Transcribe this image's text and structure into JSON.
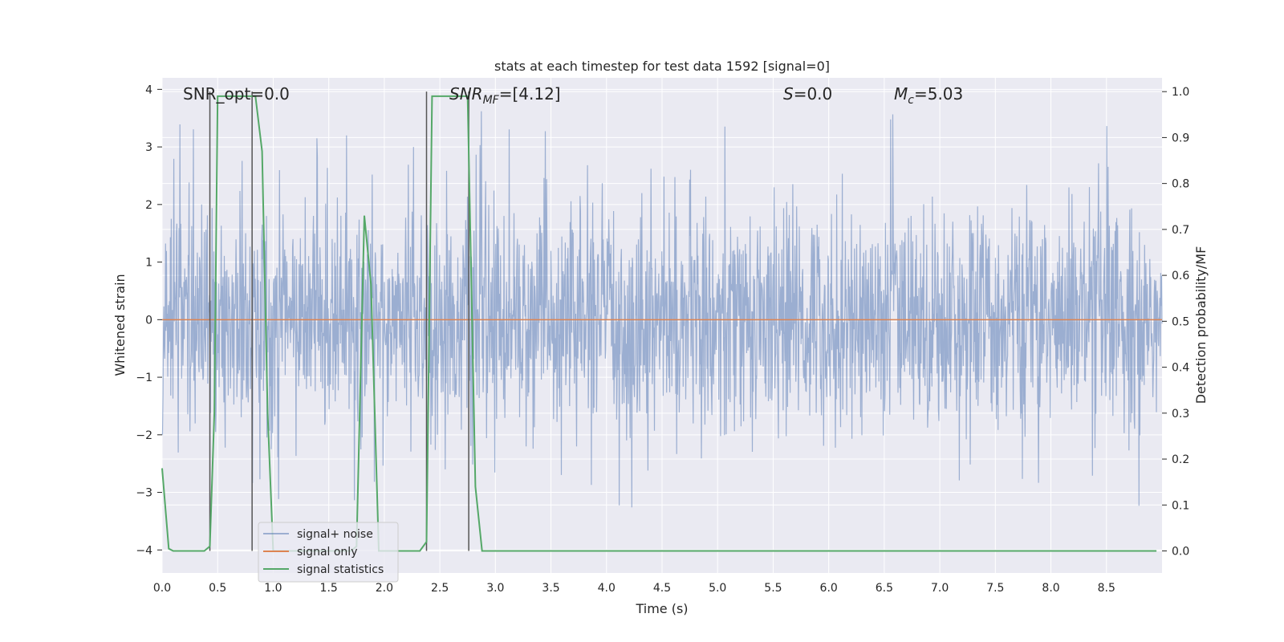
{
  "chart_data": {
    "type": "line",
    "title": "stats at each timestep for test data 1592 [signal=0]",
    "xlabel": "Time (s)",
    "ylabel": "Whitened strain",
    "ylabel_right": "Detection probability/MF",
    "xlim": [
      0.0,
      9.0
    ],
    "ylim": [
      -4.4,
      4.2
    ],
    "ylim_right": [
      -0.048,
      1.03
    ],
    "x_ticks": [
      "0.0",
      "0.5",
      "1.0",
      "1.5",
      "2.0",
      "2.5",
      "3.0",
      "3.5",
      "4.0",
      "4.5",
      "5.0",
      "5.5",
      "6.0",
      "6.5",
      "7.0",
      "7.5",
      "8.0",
      "8.5"
    ],
    "y_ticks": [
      "4",
      "3",
      "2",
      "1",
      "0",
      "−1",
      "−2",
      "−3",
      "−4"
    ],
    "y_ticks_right": [
      "1.0",
      "0.9",
      "0.8",
      "0.7",
      "0.6",
      "0.5",
      "0.4",
      "0.3",
      "0.2",
      "0.1",
      "0.0"
    ],
    "grid": true,
    "legend_position": "lower-left",
    "annotations": {
      "snr_opt": "SNR_opt=0.0",
      "snr_mf_main": "SNR",
      "snr_mf_sub": "MF",
      "snr_mf_rest": "=[4.12]",
      "s_main": "S",
      "s_rest": "=0.0",
      "mc_main": "M",
      "mc_sub": "c",
      "mc_rest": "=5.03"
    },
    "series": [
      {
        "name": "signal+ noise",
        "color": "#4c72b0",
        "style": "dense noise, amplitude mostly within ±2.5, spikes up to ±3.8",
        "typical_range": [
          -2.5,
          2.5
        ]
      },
      {
        "name": "signal only",
        "color": "#dd8452",
        "x": [
          0.0,
          9.0
        ],
        "y": [
          0.0,
          0.0
        ]
      },
      {
        "name": "signal statistics",
        "color": "#55a868",
        "axis": "right",
        "x": [
          0.0,
          0.06,
          0.1,
          0.2,
          0.3,
          0.38,
          0.43,
          0.47,
          0.5,
          0.6,
          0.7,
          0.8,
          0.84,
          0.9,
          0.95,
          1.0,
          1.1,
          1.2,
          1.3,
          1.4,
          1.5,
          1.6,
          1.7,
          1.75,
          1.82,
          1.88,
          1.95,
          2.0,
          2.1,
          2.2,
          2.32,
          2.38,
          2.43,
          2.5,
          2.6,
          2.7,
          2.75,
          2.82,
          2.88,
          3.0,
          4.0,
          5.0,
          6.0,
          7.0,
          8.0,
          8.95
        ],
        "y": [
          0.18,
          0.005,
          0.0,
          0.0,
          0.0,
          0.0,
          0.01,
          0.3,
          0.99,
          0.99,
          0.99,
          0.99,
          0.99,
          0.87,
          0.3,
          0.0,
          0.0,
          0.0,
          0.0,
          0.0,
          0.0,
          0.0,
          0.0,
          0.01,
          0.73,
          0.58,
          0.0,
          0.0,
          0.0,
          0.0,
          0.0,
          0.02,
          0.99,
          0.99,
          0.99,
          0.99,
          0.99,
          0.14,
          0.0,
          0.0,
          0.0,
          0.0,
          0.0,
          0.0,
          0.0,
          0.0
        ]
      }
    ],
    "marker_lines": [
      {
        "x": 0.43,
        "color": "#555555"
      },
      {
        "x": 0.81,
        "color": "#555555"
      },
      {
        "x": 2.38,
        "color": "#555555"
      },
      {
        "x": 2.76,
        "color": "#555555"
      }
    ],
    "legend": [
      "signal+ noise",
      "signal only",
      "signal statistics"
    ]
  }
}
